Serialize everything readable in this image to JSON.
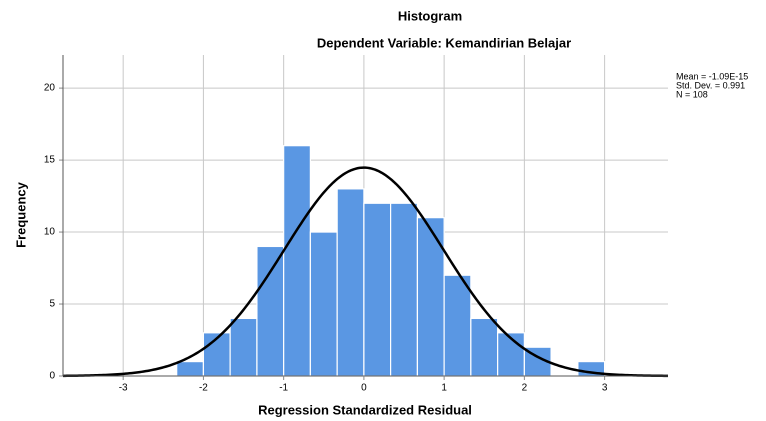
{
  "chart_data": {
    "type": "histogram",
    "title": "Histogram",
    "subtitle": "Dependent Variable: Kemandirian Belajar",
    "x_label": "Regression Standardized Residual",
    "y_label": "Frequency",
    "bins": [
      -2.333,
      -2.0,
      -1.667,
      -1.333,
      -1.0,
      -0.667,
      -0.333,
      0.0,
      0.333,
      0.667,
      1.0,
      1.333,
      1.667,
      2.0,
      2.333,
      2.667,
      3.0
    ],
    "counts": [
      1,
      3,
      4,
      9,
      16,
      10,
      13,
      12,
      12,
      11,
      7,
      4,
      3,
      2,
      0,
      1
    ],
    "color": "#5a97e3",
    "curve_color": "#000000",
    "stats": [
      {
        "value": -1.09e-15,
        "label": "Mean = -1.09E-15"
      },
      {
        "value": 0.991,
        "label": "Std. Dev. = 0.991"
      },
      {
        "value": 108,
        "label": "N = 108"
      }
    ],
    "xlim": [
      -3.75,
      3.79
    ],
    "ylim": [
      0,
      22.3
    ],
    "xticks": [
      -3,
      -2,
      -1,
      0,
      1,
      2,
      3
    ],
    "yticks": [
      0,
      5,
      10,
      15,
      20
    ],
    "grid": true
  }
}
